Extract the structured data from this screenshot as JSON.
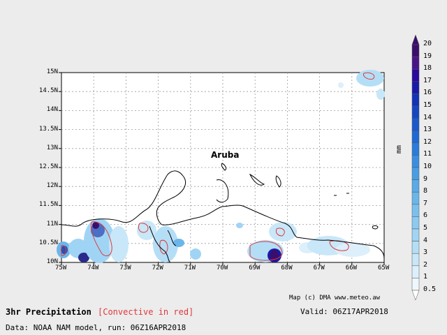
{
  "title": "3hr Precipitation",
  "subtitle": "[Convective in red]",
  "valid_text": "Valid: 06Z17APR2018",
  "source_text": "Data: NOAA NAM model, run: 06Z16APR2018",
  "credit_text": "Map (c) DMA www.meteo.aw",
  "place_label": "Aruba",
  "colorbar": {
    "units": "mm",
    "levels": [
      "20",
      "19",
      "18",
      "17",
      "16",
      "15",
      "14",
      "13",
      "12",
      "11",
      "10",
      "9",
      "8",
      "7",
      "6",
      "5",
      "4",
      "3",
      "2",
      "1",
      "0.5"
    ],
    "colors": [
      "#3b0e6b",
      "#4a1488",
      "#2a0a9c",
      "#1a1aa8",
      "#1232b8",
      "#1446c4",
      "#1a58cc",
      "#1e6ad4",
      "#2a7cdb",
      "#3a8ee0",
      "#4a9de4",
      "#5aaae8",
      "#6ab6eb",
      "#7ac0ee",
      "#8ccaf1",
      "#a0d4f4",
      "#b4def6",
      "#c8e7f8",
      "#dceffb",
      "#eef7fd"
    ]
  },
  "axes": {
    "lat_labels": [
      "15N",
      "14.5N",
      "14N",
      "13.5N",
      "13N",
      "12.5N",
      "12N",
      "11.5N",
      "11N",
      "10.5N",
      "10N"
    ],
    "lon_labels": [
      "75W",
      "74W",
      "73W",
      "72W",
      "71W",
      "70W",
      "69W",
      "68W",
      "67W",
      "66W",
      "65W"
    ]
  }
}
